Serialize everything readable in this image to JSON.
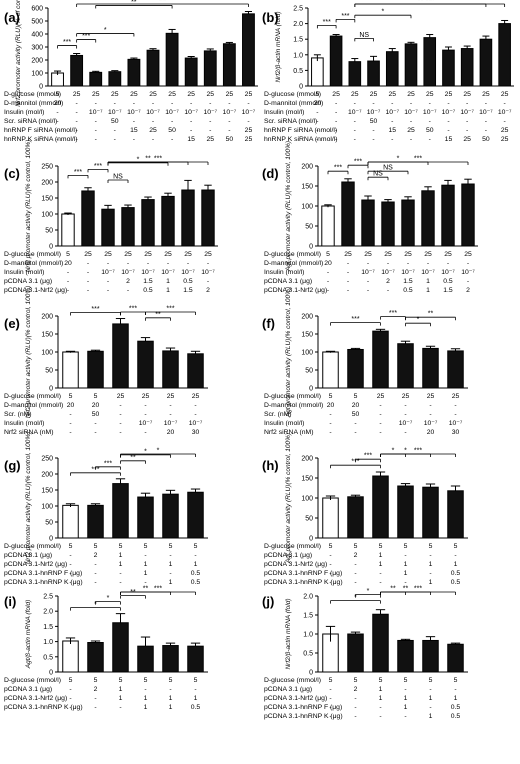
{
  "figure": {
    "panels": [
      "(a)",
      "(b)",
      "(c)",
      "(d)",
      "(e)",
      "(f)",
      "(g)",
      "(h)",
      "(i)",
      "(j)"
    ]
  },
  "chart_data": [
    {
      "type": "bar",
      "panel": "(a)",
      "ylabel": "Nrf2 promoter activity (RLU)(% of control)",
      "ylim": [
        0,
        600
      ],
      "yticks": [
        "0",
        "100",
        "200",
        "300",
        "400",
        "500",
        "600"
      ],
      "values": [
        100,
        235,
        105,
        110,
        205,
        275,
        405,
        215,
        270,
        325,
        555
      ],
      "errors": [
        15,
        15,
        8,
        8,
        10,
        12,
        30,
        12,
        15,
        10,
        18
      ],
      "condition_labels": [
        "D-glucose (mmol/l)",
        "D-mannitol (mmol/l)",
        "Insulin (mol/l)",
        "Scr. siRNA (mol/l)",
        "hnRNP F siRNA (nmol/l)",
        "hnRNP K siRNA (nmol/l)"
      ],
      "condition_values": [
        [
          "5",
          "25",
          "25",
          "25",
          "25",
          "25",
          "25",
          "25",
          "25",
          "25",
          "25"
        ],
        [
          "20",
          "-",
          "-",
          "-",
          "-",
          "-",
          "-",
          "-",
          "-",
          "-",
          "-"
        ],
        [
          "-",
          "-",
          "10⁻⁷",
          "10⁻⁷",
          "10⁻⁷",
          "10⁻⁷",
          "10⁻⁷",
          "10⁻⁷",
          "10⁻⁷",
          "10⁻⁷",
          "10⁻⁷"
        ],
        [
          "-",
          "-",
          "-",
          "50",
          "-",
          "-",
          "-",
          "-",
          "-",
          "-",
          "-"
        ],
        [
          "-",
          "-",
          "-",
          "-",
          "15",
          "25",
          "50",
          "-",
          "-",
          "-",
          "25"
        ],
        [
          "-",
          "-",
          "-",
          "-",
          "-",
          "-",
          "-",
          "15",
          "25",
          "50",
          "25"
        ]
      ],
      "significance": [
        {
          "from": 0,
          "to": 1,
          "label": "***"
        },
        {
          "from": 1,
          "to": 2,
          "label": "***"
        },
        {
          "from": 1,
          "to": 4,
          "label": "*"
        },
        {
          "from": 2,
          "to": 6,
          "label": "**"
        },
        {
          "from": 1,
          "to": 10,
          "label": "***"
        }
      ]
    },
    {
      "type": "bar",
      "panel": "(b)",
      "ylabel": "Nrf2/β-actin mRNA (fold)",
      "ylim": [
        0,
        2.5
      ],
      "yticks": [
        "0",
        "0.5",
        "1.0",
        "1.5",
        "2.0",
        "2.5"
      ],
      "values": [
        0.9,
        1.6,
        0.78,
        0.8,
        1.1,
        1.35,
        1.55,
        1.15,
        1.2,
        1.5,
        2.0
      ],
      "errors": [
        0.1,
        0.05,
        0.1,
        0.15,
        0.1,
        0.05,
        0.1,
        0.1,
        0.08,
        0.1,
        0.1
      ],
      "condition_labels": [
        "D-glucose (mmol/l)",
        "D-mannitol (mmol/l)",
        "Insulin (mol/l)",
        "Scr. siRNA (mol/l)",
        "hnRNP F siRNA (nmol/l)",
        "hnRNP K siRNA (nmol/l)"
      ],
      "condition_values": [
        [
          "5",
          "25",
          "25",
          "25",
          "25",
          "25",
          "25",
          "25",
          "25",
          "25",
          "25"
        ],
        [
          "20",
          "-",
          "-",
          "-",
          "-",
          "-",
          "-",
          "-",
          "-",
          "-",
          "-"
        ],
        [
          "-",
          "-",
          "10⁻⁷",
          "10⁻⁷",
          "10⁻⁷",
          "10⁻⁷",
          "10⁻⁷",
          "10⁻⁷",
          "10⁻⁷",
          "10⁻⁷",
          "10⁻⁷"
        ],
        [
          "-",
          "-",
          "-",
          "50",
          "-",
          "-",
          "-",
          "-",
          "-",
          "-",
          "-"
        ],
        [
          "-",
          "-",
          "-",
          "-",
          "15",
          "25",
          "50",
          "-",
          "-",
          "-",
          "25"
        ],
        [
          "-",
          "-",
          "-",
          "-",
          "-",
          "-",
          "-",
          "15",
          "25",
          "50",
          "25"
        ]
      ],
      "significance": [
        {
          "from": 0,
          "to": 1,
          "label": "***"
        },
        {
          "from": 1,
          "to": 2,
          "label": "***"
        },
        {
          "from": 2,
          "to": 3,
          "label": "NS"
        },
        {
          "from": 2,
          "to": 5,
          "label": "*"
        },
        {
          "from": 2,
          "to": 9,
          "label": "**"
        },
        {
          "from": 2,
          "to": 10,
          "label": "***"
        }
      ]
    },
    {
      "type": "bar",
      "panel": "(c)",
      "ylabel": "Nrf2 promoter activity (RLU)(% control, 100%)",
      "ylim": [
        0,
        250
      ],
      "yticks": [
        "0",
        "50",
        "100",
        "150",
        "200",
        "250"
      ],
      "values": [
        100,
        172,
        115,
        120,
        145,
        155,
        175,
        175
      ],
      "errors": [
        3,
        10,
        12,
        8,
        8,
        10,
        30,
        15
      ],
      "condition_labels": [
        "D-glucose (mmol/l)",
        "D-mannitol (mmol/l)",
        "Insulin (mol/l)",
        "pCDNA 3.1 (μg)",
        "pCDNA 3.1-Nrf2 (μg)"
      ],
      "condition_values": [
        [
          "5",
          "25",
          "25",
          "25",
          "25",
          "25",
          "25",
          "25"
        ],
        [
          "20",
          "-",
          "-",
          "-",
          "-",
          "-",
          "-",
          "-"
        ],
        [
          "-",
          "-",
          "10⁻⁷",
          "10⁻⁷",
          "10⁻⁷",
          "10⁻⁷",
          "10⁻⁷",
          "10⁻⁷"
        ],
        [
          "-",
          "-",
          "-",
          "2",
          "1.5",
          "1",
          "0.5",
          "-"
        ],
        [
          "-",
          "-",
          "-",
          "-",
          "0.5",
          "1",
          "1.5",
          "2"
        ]
      ],
      "significance": [
        {
          "from": 0,
          "to": 1,
          "label": "***"
        },
        {
          "from": 1,
          "to": 2,
          "label": "***"
        },
        {
          "from": 2,
          "to": 3,
          "label": "NS"
        },
        {
          "from": 2,
          "to": 5,
          "label": "*"
        },
        {
          "from": 2,
          "to": 6,
          "label": "**"
        },
        {
          "from": 2,
          "to": 7,
          "label": "***"
        }
      ]
    },
    {
      "type": "bar",
      "panel": "(d)",
      "ylabel": "Agt promoter activity (RLU)(% control, 100%)",
      "ylim": [
        0,
        200
      ],
      "yticks": [
        "0",
        "50",
        "100",
        "150",
        "200"
      ],
      "values": [
        100,
        160,
        115,
        110,
        115,
        138,
        152,
        155
      ],
      "errors": [
        3,
        8,
        10,
        6,
        8,
        10,
        12,
        12
      ],
      "condition_labels": [
        "D-glucose (mmol/l)",
        "D-mannitol (mmol/l)",
        "Insulin (mol/l)",
        "pCDNA 3.1 (μg)",
        "pCDNA 3.1-Nrf2 (μg)"
      ],
      "condition_values": [
        [
          "5",
          "25",
          "25",
          "25",
          "25",
          "25",
          "25",
          "25"
        ],
        [
          "20",
          "-",
          "-",
          "-",
          "-",
          "-",
          "-",
          "-"
        ],
        [
          "-",
          "-",
          "10⁻⁷",
          "10⁻⁷",
          "10⁻⁷",
          "10⁻⁷",
          "10⁻⁷",
          "10⁻⁷"
        ],
        [
          "-",
          "-",
          "-",
          "2",
          "1.5",
          "1",
          "0.5",
          "-"
        ],
        [
          "-",
          "-",
          "-",
          "-",
          "0.5",
          "1",
          "1.5",
          "2"
        ]
      ],
      "significance": [
        {
          "from": 0,
          "to": 1,
          "label": "***"
        },
        {
          "from": 1,
          "to": 2,
          "label": "***"
        },
        {
          "from": 2,
          "to": 3,
          "label": "NS"
        },
        {
          "from": 2,
          "to": 4,
          "label": "NS"
        },
        {
          "from": 2,
          "to": 5,
          "label": "*"
        },
        {
          "from": 2,
          "to": 7,
          "label": "***"
        }
      ]
    },
    {
      "type": "bar",
      "panel": "(e)",
      "ylabel": "Nrf2 promoter activity (RLU)(% control, 100%)",
      "ylim": [
        0,
        200
      ],
      "yticks": [
        "0",
        "50",
        "100",
        "150",
        "200"
      ],
      "values": [
        100,
        102,
        178,
        130,
        103,
        95
      ],
      "errors": [
        2,
        3,
        15,
        10,
        8,
        7
      ],
      "condition_labels": [
        "D-glucose (mmol/l)",
        "D-mannitol (mmol/l)",
        "Scr. (nM)",
        "Insulin (mol/l)",
        "Nrf2 siRNA (nM)"
      ],
      "condition_values": [
        [
          "5",
          "5",
          "25",
          "25",
          "25",
          "25"
        ],
        [
          "20",
          "20",
          "-",
          "-",
          "-",
          "-"
        ],
        [
          "-",
          "50",
          "-",
          "-",
          "-",
          "-"
        ],
        [
          "-",
          "-",
          "-",
          "10⁻⁷",
          "10⁻⁷",
          "10⁻⁷"
        ],
        [
          "-",
          "-",
          "-",
          "-",
          "20",
          "30"
        ]
      ],
      "significance": [
        {
          "from": 0,
          "to": 2,
          "label": "***"
        },
        {
          "from": 2,
          "to": 3,
          "label": "***"
        },
        {
          "from": 3,
          "to": 4,
          "label": "**"
        },
        {
          "from": 3,
          "to": 5,
          "label": "***"
        }
      ]
    },
    {
      "type": "bar",
      "panel": "(f)",
      "ylabel": "Agt promoter activity (RLU)(% control, 100%)",
      "ylim": [
        0,
        200
      ],
      "yticks": [
        "0",
        "50",
        "100",
        "150",
        "200"
      ],
      "values": [
        100,
        107,
        158,
        123,
        110,
        103
      ],
      "errors": [
        2,
        3,
        5,
        7,
        6,
        6
      ],
      "condition_labels": [
        "D-glucose (mmol/l)",
        "D-mannitol (mmol/l)",
        "Scr. (nM)",
        "Insulin (mol/l)",
        "Nrf2 siRNA (nM)"
      ],
      "condition_values": [
        [
          "5",
          "5",
          "25",
          "25",
          "25",
          "25"
        ],
        [
          "20",
          "20",
          "-",
          "-",
          "-",
          "-"
        ],
        [
          "-",
          "50",
          "-",
          "-",
          "-",
          "-"
        ],
        [
          "-",
          "-",
          "-",
          "10⁻⁷",
          "10⁻⁷",
          "10⁻⁷"
        ],
        [
          "-",
          "-",
          "-",
          "-",
          "20",
          "30"
        ]
      ],
      "significance": [
        {
          "from": 0,
          "to": 2,
          "label": "***"
        },
        {
          "from": 2,
          "to": 3,
          "label": "***"
        },
        {
          "from": 3,
          "to": 4,
          "label": "*"
        },
        {
          "from": 3,
          "to": 5,
          "label": "**"
        }
      ]
    },
    {
      "type": "bar",
      "panel": "(g)",
      "ylabel": "Nrf2 promoter activity (RLU)(% control, 100%)",
      "ylim": [
        0,
        250
      ],
      "yticks": [
        "0",
        "50",
        "100",
        "150",
        "200",
        "250"
      ],
      "values": [
        102,
        102,
        170,
        128,
        137,
        143
      ],
      "errors": [
        5,
        5,
        15,
        12,
        12,
        10
      ],
      "condition_labels": [
        "D-glucose (mmol/l)",
        "pCDNA 3.1 (μg)",
        "pCDNA 3.1-Nrf2 (μg)",
        "pCDNA 3.1-hnRNP F (μg)",
        "pCDNA 3.1-hnRNP K (μg)"
      ],
      "condition_values": [
        [
          "5",
          "5",
          "5",
          "5",
          "5",
          "5"
        ],
        [
          "-",
          "2",
          "1",
          "-",
          "-",
          "-"
        ],
        [
          "-",
          "-",
          "1",
          "1",
          "1",
          "1"
        ],
        [
          "-",
          "-",
          "-",
          "1",
          "-",
          "0.5"
        ],
        [
          "-",
          "-",
          "-",
          "-",
          "1",
          "0.5"
        ]
      ],
      "significance": [
        {
          "from": 0,
          "to": 2,
          "label": "***"
        },
        {
          "from": 1,
          "to": 2,
          "label": "***"
        },
        {
          "from": 2,
          "to": 3,
          "label": "**"
        },
        {
          "from": 2,
          "to": 4,
          "label": "*"
        },
        {
          "from": 2,
          "to": 5,
          "label": "*"
        }
      ]
    },
    {
      "type": "bar",
      "panel": "(h)",
      "ylabel": "Agt promoter activity (RLU)(% control, 100%)",
      "ylim": [
        0,
        200
      ],
      "yticks": [
        "0",
        "50",
        "100",
        "150",
        "200"
      ],
      "values": [
        100,
        103,
        155,
        130,
        127,
        118
      ],
      "errors": [
        5,
        4,
        10,
        6,
        8,
        12
      ],
      "condition_labels": [
        "D-glucose (mmol/l)",
        "pCDNA 3.1 (μg)",
        "pCDNA 3.1-Nrf2 (μg)",
        "pCDNA 3.1-hnRNP F (μg)",
        "pCDNA 3.1-hnRNP K (μg)"
      ],
      "condition_values": [
        [
          "5",
          "5",
          "5",
          "5",
          "5",
          "5"
        ],
        [
          "-",
          "2",
          "1",
          "-",
          "-",
          "-"
        ],
        [
          "-",
          "-",
          "1",
          "1",
          "1",
          "1"
        ],
        [
          "-",
          "-",
          "-",
          "1",
          "-",
          "0.5"
        ],
        [
          "-",
          "-",
          "-",
          "-",
          "1",
          "0.5"
        ]
      ],
      "significance": [
        {
          "from": 0,
          "to": 2,
          "label": "***"
        },
        {
          "from": 1,
          "to": 2,
          "label": "***"
        },
        {
          "from": 2,
          "to": 3,
          "label": "*"
        },
        {
          "from": 2,
          "to": 4,
          "label": "*"
        },
        {
          "from": 2,
          "to": 5,
          "label": "***"
        }
      ]
    },
    {
      "type": "bar",
      "panel": "(i)",
      "ylabel": "Agt/β-actin mRNA (fold)",
      "ylim": [
        0,
        2.5
      ],
      "yticks": [
        "0",
        "0.5",
        "1.0",
        "1.5",
        "2.0",
        "2.5"
      ],
      "values": [
        1.02,
        0.97,
        1.62,
        0.85,
        0.87,
        0.85
      ],
      "errors": [
        0.1,
        0.05,
        0.3,
        0.3,
        0.08,
        0.1
      ],
      "condition_labels": [
        "D-glucose (mmol/l)",
        "pCDNA 3.1 (μg)",
        "pCDNA 3.1-Nrf2 (μg)",
        "pCDNA 3.1-hnRNP K (μg)"
      ],
      "condition_values": [
        [
          "5",
          "5",
          "5",
          "5",
          "5",
          "5"
        ],
        [
          "-",
          "2",
          "1",
          "-",
          "-",
          "-"
        ],
        [
          "-",
          "-",
          "1",
          "1",
          "1",
          "1"
        ],
        [
          "-",
          "-",
          "-",
          "1",
          "1",
          "0.5"
        ]
      ],
      "significance": [
        {
          "from": 0,
          "to": 2,
          "label": "*"
        },
        {
          "from": 1,
          "to": 2,
          "label": "*"
        },
        {
          "from": 2,
          "to": 3,
          "label": "**"
        },
        {
          "from": 2,
          "to": 4,
          "label": "**"
        },
        {
          "from": 2,
          "to": 5,
          "label": "***"
        }
      ]
    },
    {
      "type": "bar",
      "panel": "(j)",
      "ylabel": "Nrf2/β-actin mRNA (fold)",
      "ylim": [
        0,
        2.0
      ],
      "yticks": [
        "0",
        "0.5",
        "1.0",
        "1.5",
        "2.0"
      ],
      "values": [
        1.0,
        1.0,
        1.52,
        0.83,
        0.83,
        0.73
      ],
      "errors": [
        0.2,
        0.05,
        0.12,
        0.03,
        0.1,
        0.03
      ],
      "condition_labels": [
        "D-glucose (mmol/l)",
        "pCDNA 3.1 (μg)",
        "pCDNA 3.1-Nrf2 (μg)",
        "pCDNA 3.1-hnRNP F (μg)",
        "pCDNA 3.1-hnRNP K (μg)"
      ],
      "condition_values": [
        [
          "5",
          "5",
          "5",
          "5",
          "5",
          "5"
        ],
        [
          "-",
          "2",
          "1",
          "-",
          "-",
          "-"
        ],
        [
          "-",
          "-",
          "1",
          "1",
          "1",
          "1"
        ],
        [
          "-",
          "-",
          "-",
          "1",
          "-",
          "0.5"
        ],
        [
          "-",
          "-",
          "-",
          "-",
          "1",
          "0.5"
        ]
      ],
      "significance": [
        {
          "from": 0,
          "to": 2,
          "label": "*"
        },
        {
          "from": 1,
          "to": 2,
          "label": "*"
        },
        {
          "from": 2,
          "to": 3,
          "label": "**"
        },
        {
          "from": 2,
          "to": 4,
          "label": "**"
        },
        {
          "from": 2,
          "to": 5,
          "label": "***"
        }
      ]
    }
  ]
}
